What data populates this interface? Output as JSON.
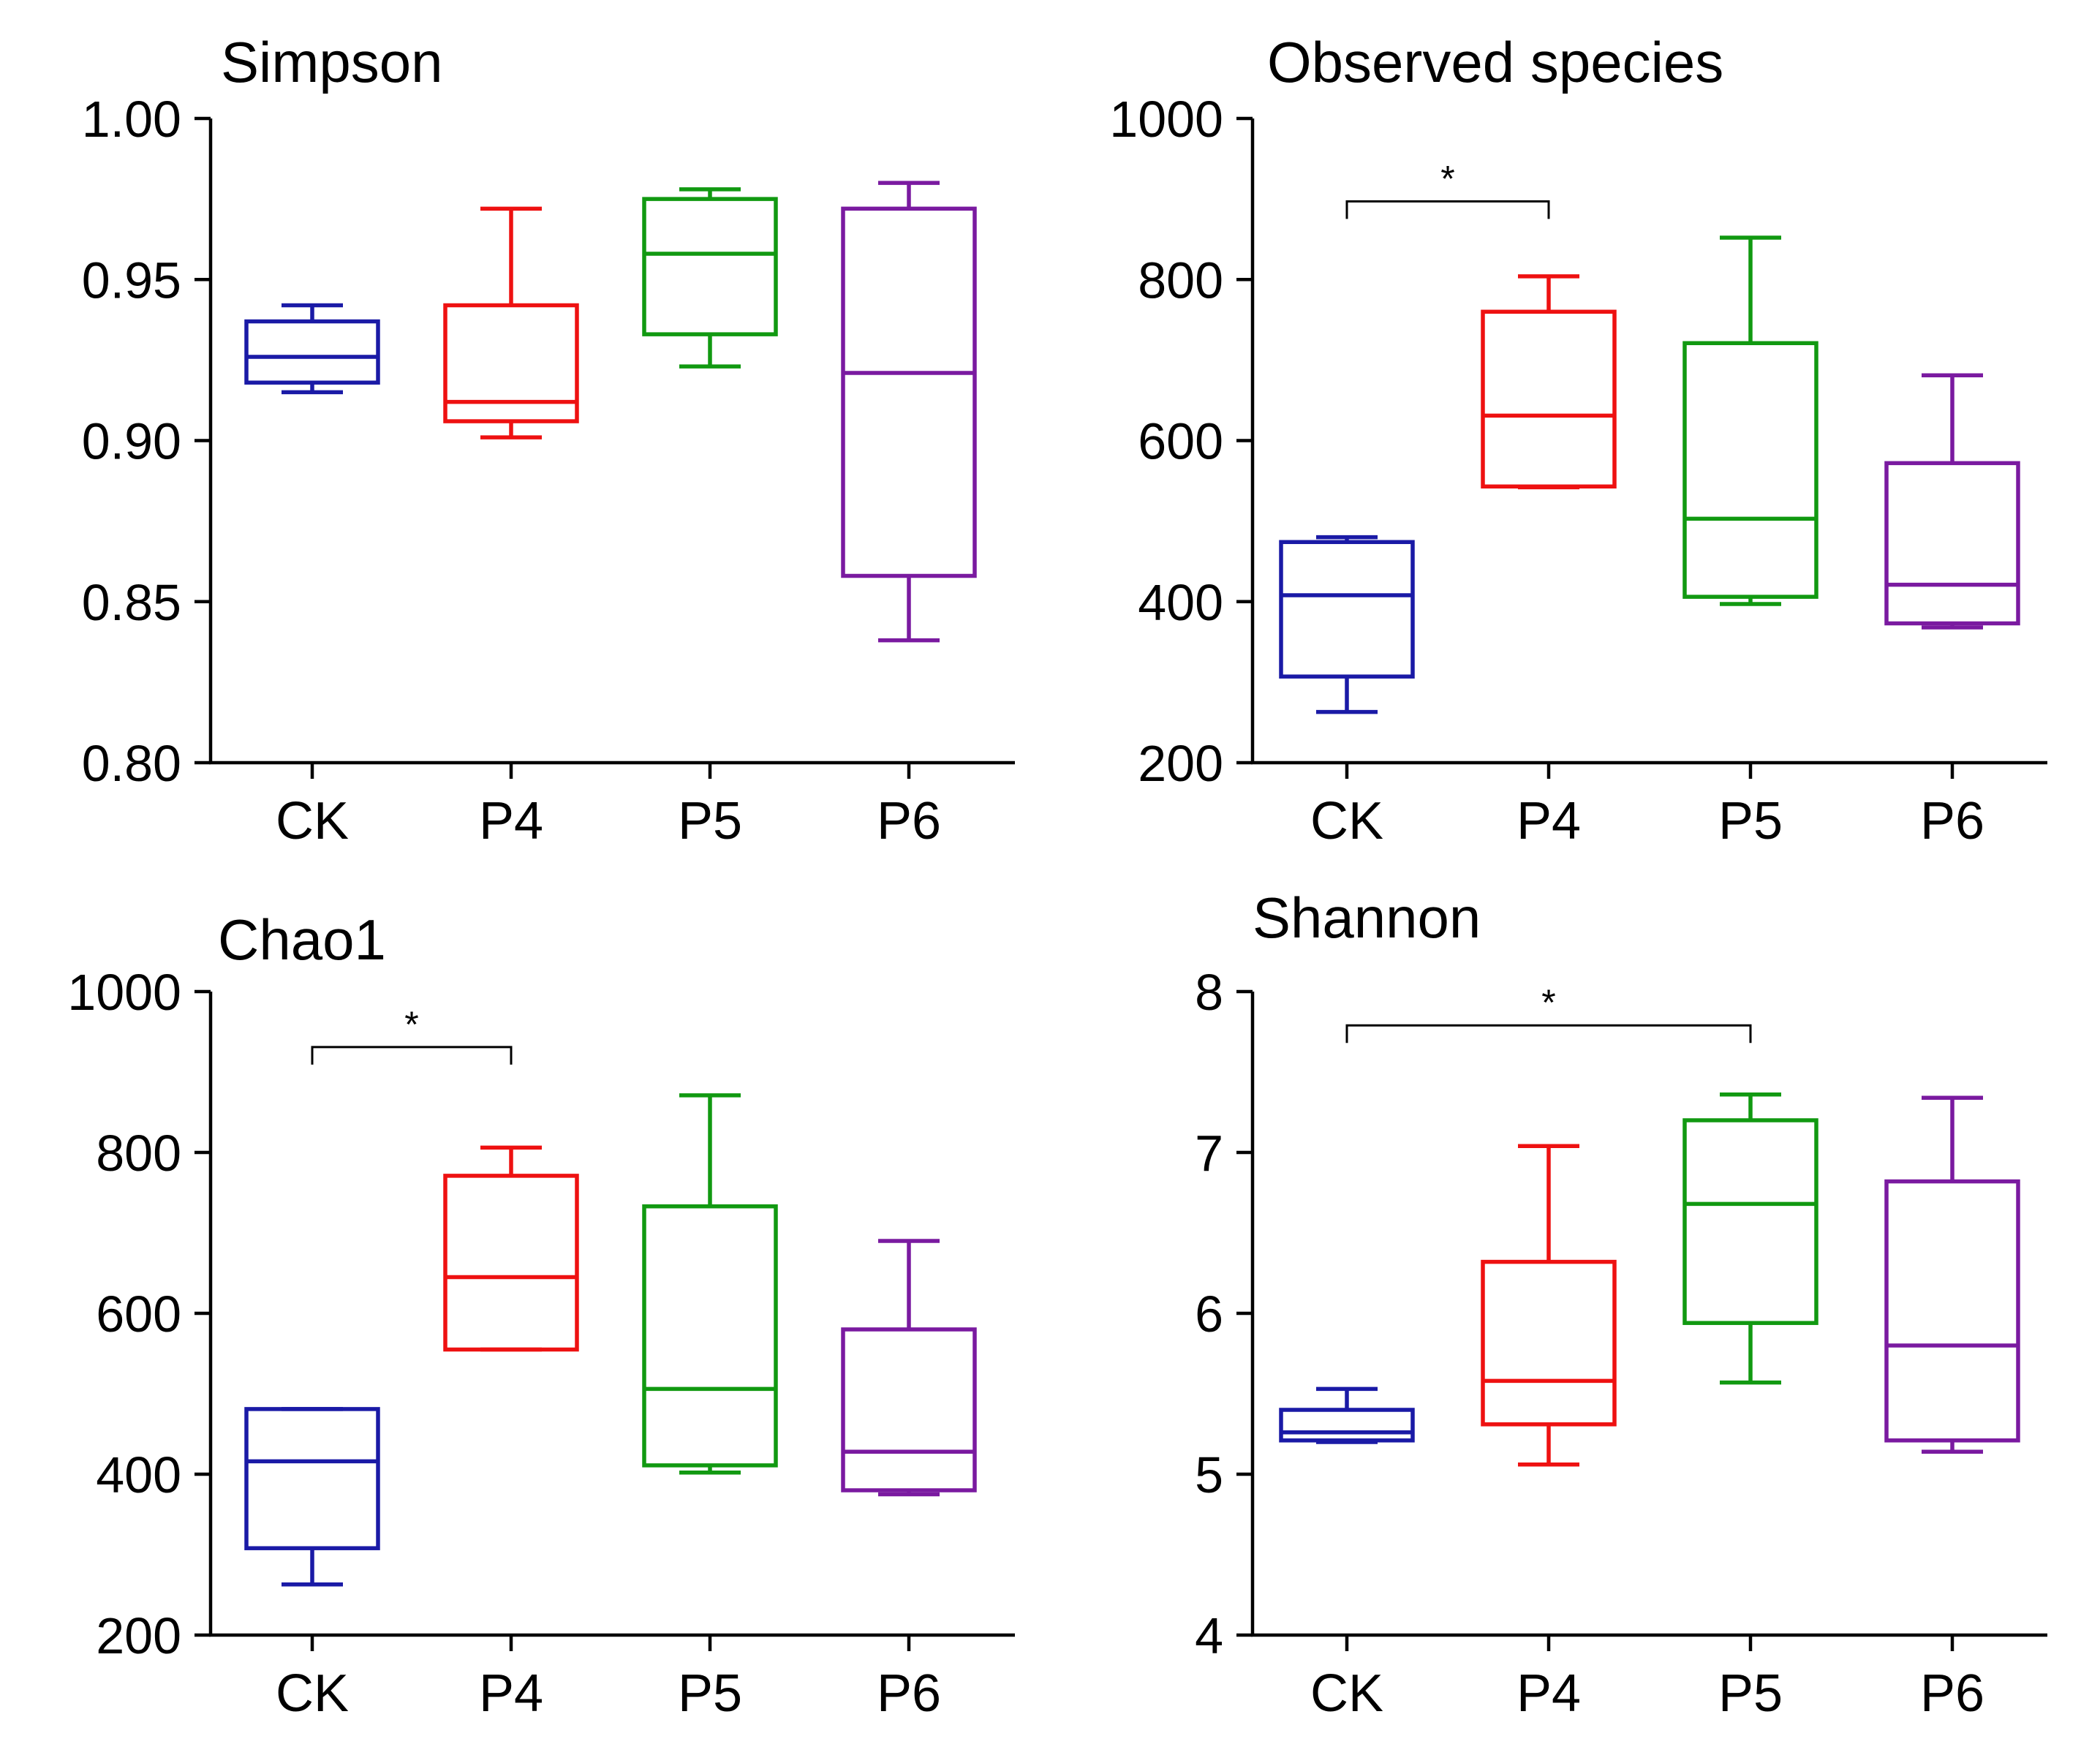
{
  "chart_data": [
    {
      "type": "box",
      "title": "Simpson",
      "categories": [
        "CK",
        "P4",
        "P5",
        "P6"
      ],
      "colors": [
        "#1a1aa6",
        "#ee1111",
        "#119911",
        "#7a1aa0"
      ],
      "ylim": [
        0.8,
        1.0
      ],
      "yticks": [
        0.8,
        0.85,
        0.9,
        0.95,
        1.0
      ],
      "ytick_labels": [
        "0.80",
        "0.85",
        "0.90",
        "0.95",
        "1.00"
      ],
      "boxes": [
        {
          "min": 0.915,
          "q1": 0.918,
          "median": 0.926,
          "q3": 0.937,
          "max": 0.942
        },
        {
          "min": 0.901,
          "q1": 0.906,
          "median": 0.912,
          "q3": 0.942,
          "max": 0.972
        },
        {
          "min": 0.923,
          "q1": 0.933,
          "median": 0.958,
          "q3": 0.975,
          "max": 0.978
        },
        {
          "min": 0.838,
          "q1": 0.858,
          "median": 0.921,
          "q3": 0.972,
          "max": 0.98
        }
      ],
      "significance": []
    },
    {
      "type": "box",
      "title": "Observed species",
      "categories": [
        "CK",
        "P4",
        "P5",
        "P6"
      ],
      "colors": [
        "#1a1aa6",
        "#ee1111",
        "#119911",
        "#7a1aa0"
      ],
      "ylim": [
        200,
        1000
      ],
      "yticks": [
        200,
        400,
        600,
        800,
        1000
      ],
      "ytick_labels": [
        "200",
        "400",
        "600",
        "800",
        "1000"
      ],
      "boxes": [
        {
          "min": 263,
          "q1": 307,
          "median": 408,
          "q3": 474,
          "max": 480
        },
        {
          "min": 542,
          "q1": 543,
          "median": 631,
          "q3": 760,
          "max": 804
        },
        {
          "min": 397,
          "q1": 406,
          "median": 503,
          "q3": 721,
          "max": 852
        },
        {
          "min": 368,
          "q1": 373,
          "median": 421,
          "q3": 572,
          "max": 681
        }
      ],
      "significance": [
        {
          "from": 0,
          "to": 1,
          "label": "*",
          "level": 897
        }
      ]
    },
    {
      "type": "box",
      "title": "Chao1",
      "categories": [
        "CK",
        "P4",
        "P5",
        "P6"
      ],
      "colors": [
        "#1a1aa6",
        "#ee1111",
        "#119911",
        "#7a1aa0"
      ],
      "ylim": [
        200,
        1000
      ],
      "yticks": [
        200,
        400,
        600,
        800,
        1000
      ],
      "ytick_labels": [
        "200",
        "400",
        "600",
        "800",
        "1000"
      ],
      "boxes": [
        {
          "min": 263,
          "q1": 308,
          "median": 416,
          "q3": 481,
          "max": 481
        },
        {
          "min": 555,
          "q1": 555,
          "median": 645,
          "q3": 771,
          "max": 806
        },
        {
          "min": 402,
          "q1": 411,
          "median": 506,
          "q3": 733,
          "max": 871
        },
        {
          "min": 375,
          "q1": 380,
          "median": 428,
          "q3": 580,
          "max": 690
        }
      ],
      "significance": [
        {
          "from": 0,
          "to": 1,
          "label": "*",
          "level": 931
        }
      ]
    },
    {
      "type": "box",
      "title": "Shannon",
      "categories": [
        "CK",
        "P4",
        "P5",
        "P6"
      ],
      "colors": [
        "#1a1aa6",
        "#ee1111",
        "#119911",
        "#7a1aa0"
      ],
      "ylim": [
        4,
        8
      ],
      "yticks": [
        4,
        5,
        6,
        7,
        8
      ],
      "ytick_labels": [
        "4",
        "5",
        "6",
        "7",
        "8"
      ],
      "boxes": [
        {
          "min": 5.2,
          "q1": 5.21,
          "median": 5.26,
          "q3": 5.4,
          "max": 5.53
        },
        {
          "min": 5.06,
          "q1": 5.31,
          "median": 5.58,
          "q3": 6.32,
          "max": 7.04
        },
        {
          "min": 5.57,
          "q1": 5.94,
          "median": 6.68,
          "q3": 7.2,
          "max": 7.36
        },
        {
          "min": 5.14,
          "q1": 5.21,
          "median": 5.8,
          "q3": 6.82,
          "max": 7.34
        }
      ],
      "significance": [
        {
          "from": 0,
          "to": 2,
          "label": "*",
          "level": 7.79
        }
      ]
    }
  ]
}
